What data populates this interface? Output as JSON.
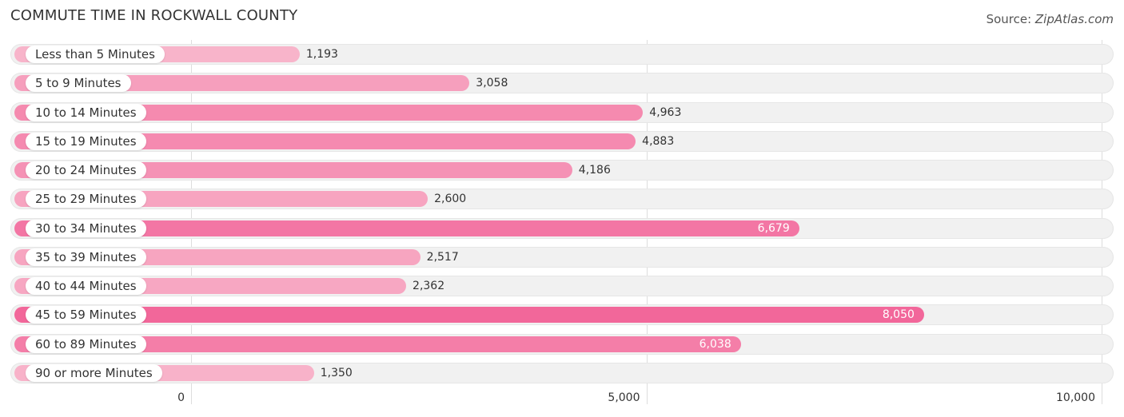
{
  "title": "COMMUTE TIME IN ROCKWALL COUNTY",
  "source_label": "Source: ",
  "source_name": "ZipAtlas.com",
  "chart_data": {
    "type": "bar",
    "orientation": "horizontal",
    "categories": [
      "Less than 5 Minutes",
      "5 to 9 Minutes",
      "10 to 14 Minutes",
      "15 to 19 Minutes",
      "20 to 24 Minutes",
      "25 to 29 Minutes",
      "30 to 34 Minutes",
      "35 to 39 Minutes",
      "40 to 44 Minutes",
      "45 to 59 Minutes",
      "60 to 89 Minutes",
      "90 or more Minutes"
    ],
    "values": [
      1193,
      3058,
      4963,
      4883,
      4186,
      2600,
      6679,
      2517,
      2362,
      8050,
      6038,
      1350
    ],
    "value_labels": [
      "1,193",
      "3,058",
      "4,963",
      "4,883",
      "4,186",
      "2,600",
      "6,679",
      "2,517",
      "2,362",
      "8,050",
      "6,038",
      "1,350"
    ],
    "xlim": [
      0,
      10000
    ],
    "ticks": [
      0,
      5000,
      10000
    ],
    "tick_labels": [
      "0",
      "5,000",
      "10,000"
    ],
    "grid": true,
    "bar_color_light": "#f8b6cb",
    "bar_color_dark": "#f2679a"
  }
}
